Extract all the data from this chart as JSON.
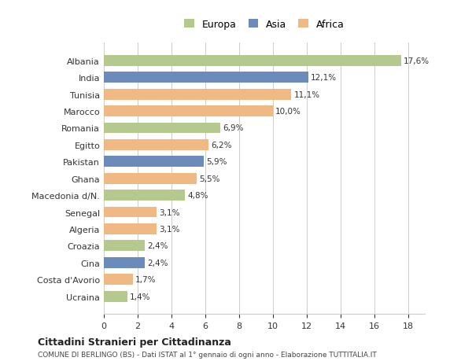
{
  "countries": [
    "Albania",
    "India",
    "Tunisia",
    "Marocco",
    "Romania",
    "Egitto",
    "Pakistan",
    "Ghana",
    "Macedonia d/N.",
    "Senegal",
    "Algeria",
    "Croazia",
    "Cina",
    "Costa d'Avorio",
    "Ucraina"
  ],
  "values": [
    17.6,
    12.1,
    11.1,
    10.0,
    6.9,
    6.2,
    5.9,
    5.5,
    4.8,
    3.1,
    3.1,
    2.4,
    2.4,
    1.7,
    1.4
  ],
  "labels": [
    "17,6%",
    "12,1%",
    "11,1%",
    "10,0%",
    "6,9%",
    "6,2%",
    "5,9%",
    "5,5%",
    "4,8%",
    "3,1%",
    "3,1%",
    "2,4%",
    "2,4%",
    "1,7%",
    "1,4%"
  ],
  "continents": [
    "Europa",
    "Asia",
    "Africa",
    "Africa",
    "Europa",
    "Africa",
    "Asia",
    "Africa",
    "Europa",
    "Africa",
    "Africa",
    "Europa",
    "Asia",
    "Africa",
    "Europa"
  ],
  "colors": {
    "Europa": "#b5c98e",
    "Asia": "#6b8cba",
    "Africa": "#f0b882"
  },
  "legend_order": [
    "Europa",
    "Asia",
    "Africa"
  ],
  "xlim": [
    0,
    19
  ],
  "xticks": [
    0,
    2,
    4,
    6,
    8,
    10,
    12,
    14,
    16,
    18
  ],
  "title": "Cittadini Stranieri per Cittadinanza",
  "subtitle": "COMUNE DI BERLINGO (BS) - Dati ISTAT al 1° gennaio di ogni anno - Elaborazione TUTTITALIA.IT",
  "background_color": "#ffffff",
  "grid_color": "#cccccc",
  "bar_height": 0.65
}
